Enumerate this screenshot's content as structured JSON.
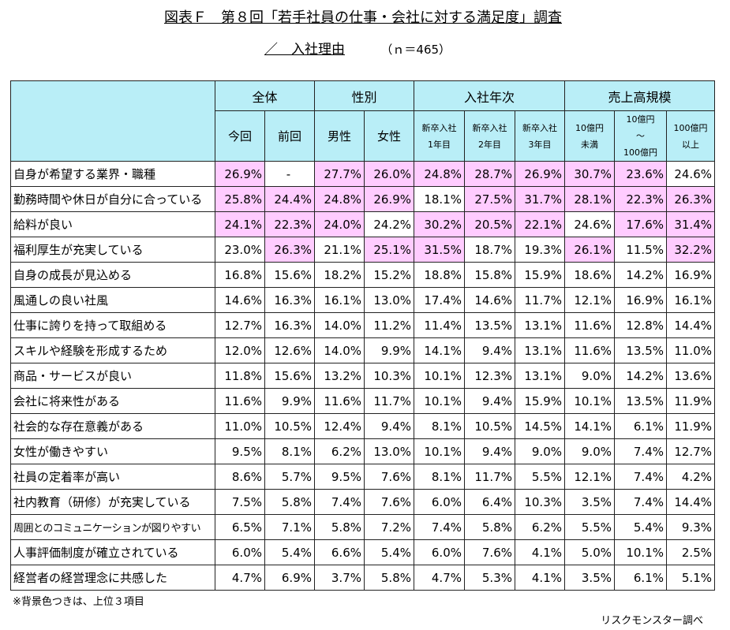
{
  "title": {
    "line1": "図表Ｆ　第８回「若手社員の仕事・会社に対する満足度」調査",
    "line2_slash": "／　入社理由",
    "line2_n": "（ｎ＝465）"
  },
  "table": {
    "groups": [
      "全体",
      "性別",
      "入社年次",
      "売上高規模"
    ],
    "subheaders": [
      "今回",
      "前回",
      "男性",
      "女性",
      "新卒入社\n1年目",
      "新卒入社\n2年目",
      "新卒入社\n3年目",
      "10億円\n未満",
      "10億円\n～\n100億円",
      "100億円\n以上"
    ],
    "rows": [
      {
        "label": "自身が希望する業界・職種",
        "values": [
          "26.9%",
          "-",
          "27.7%",
          "26.0%",
          "24.8%",
          "28.7%",
          "26.9%",
          "30.7%",
          "23.6%",
          "24.6%"
        ],
        "hl": [
          1,
          0,
          1,
          1,
          1,
          1,
          1,
          1,
          1,
          0
        ]
      },
      {
        "label": "勤務時間や休日が自分に合っている",
        "values": [
          "25.8%",
          "24.4%",
          "24.8%",
          "26.9%",
          "18.1%",
          "27.5%",
          "31.7%",
          "28.1%",
          "22.3%",
          "26.3%"
        ],
        "hl": [
          1,
          1,
          1,
          1,
          0,
          1,
          1,
          1,
          1,
          1
        ]
      },
      {
        "label": "給料が良い",
        "values": [
          "24.1%",
          "22.3%",
          "24.0%",
          "24.2%",
          "30.2%",
          "20.5%",
          "22.1%",
          "24.6%",
          "17.6%",
          "31.4%"
        ],
        "hl": [
          1,
          1,
          1,
          0,
          1,
          1,
          1,
          0,
          1,
          1
        ]
      },
      {
        "label": "福利厚生が充実している",
        "values": [
          "23.0%",
          "26.3%",
          "21.1%",
          "25.1%",
          "31.5%",
          "18.7%",
          "19.3%",
          "26.1%",
          "11.5%",
          "32.2%"
        ],
        "hl": [
          0,
          1,
          0,
          1,
          1,
          0,
          0,
          1,
          0,
          1
        ]
      },
      {
        "label": "自身の成長が見込める",
        "values": [
          "16.8%",
          "15.6%",
          "18.2%",
          "15.2%",
          "18.8%",
          "15.8%",
          "15.9%",
          "18.6%",
          "14.2%",
          "16.9%"
        ],
        "hl": [
          0,
          0,
          0,
          0,
          0,
          0,
          0,
          0,
          0,
          0
        ]
      },
      {
        "label": "風通しの良い社風",
        "values": [
          "14.6%",
          "16.3%",
          "16.1%",
          "13.0%",
          "17.4%",
          "14.6%",
          "11.7%",
          "12.1%",
          "16.9%",
          "16.1%"
        ],
        "hl": [
          0,
          0,
          0,
          0,
          0,
          0,
          0,
          0,
          0,
          0
        ]
      },
      {
        "label": "仕事に誇りを持って取組める",
        "values": [
          "12.7%",
          "16.3%",
          "14.0%",
          "11.2%",
          "11.4%",
          "13.5%",
          "13.1%",
          "11.6%",
          "12.8%",
          "14.4%"
        ],
        "hl": [
          0,
          0,
          0,
          0,
          0,
          0,
          0,
          0,
          0,
          0
        ]
      },
      {
        "label": "スキルや経験を形成するため",
        "values": [
          "12.0%",
          "12.6%",
          "14.0%",
          "9.9%",
          "14.1%",
          "9.4%",
          "13.1%",
          "11.6%",
          "13.5%",
          "11.0%"
        ],
        "hl": [
          0,
          0,
          0,
          0,
          0,
          0,
          0,
          0,
          0,
          0
        ]
      },
      {
        "label": "商品・サービスが良い",
        "values": [
          "11.8%",
          "15.6%",
          "13.2%",
          "10.3%",
          "10.1%",
          "12.3%",
          "13.1%",
          "9.0%",
          "14.2%",
          "13.6%"
        ],
        "hl": [
          0,
          0,
          0,
          0,
          0,
          0,
          0,
          0,
          0,
          0
        ]
      },
      {
        "label": "会社に将来性がある",
        "values": [
          "11.6%",
          "9.9%",
          "11.6%",
          "11.7%",
          "10.1%",
          "9.4%",
          "15.9%",
          "10.1%",
          "13.5%",
          "11.9%"
        ],
        "hl": [
          0,
          0,
          0,
          0,
          0,
          0,
          0,
          0,
          0,
          0
        ]
      },
      {
        "label": "社会的な存在意義がある",
        "values": [
          "11.0%",
          "10.5%",
          "12.4%",
          "9.4%",
          "8.1%",
          "10.5%",
          "14.5%",
          "14.1%",
          "6.1%",
          "11.9%"
        ],
        "hl": [
          0,
          0,
          0,
          0,
          0,
          0,
          0,
          0,
          0,
          0
        ]
      },
      {
        "label": "女性が働きやすい",
        "values": [
          "9.5%",
          "8.1%",
          "6.2%",
          "13.0%",
          "10.1%",
          "9.4%",
          "9.0%",
          "9.0%",
          "7.4%",
          "12.7%"
        ],
        "hl": [
          0,
          0,
          0,
          0,
          0,
          0,
          0,
          0,
          0,
          0
        ]
      },
      {
        "label": "社員の定着率が高い",
        "values": [
          "8.6%",
          "5.7%",
          "9.5%",
          "7.6%",
          "8.1%",
          "11.7%",
          "5.5%",
          "12.1%",
          "7.4%",
          "4.2%"
        ],
        "hl": [
          0,
          0,
          0,
          0,
          0,
          0,
          0,
          0,
          0,
          0
        ]
      },
      {
        "label": "社内教育（研修）が充実している",
        "values": [
          "7.5%",
          "5.8%",
          "7.4%",
          "7.6%",
          "6.0%",
          "6.4%",
          "10.3%",
          "3.5%",
          "7.4%",
          "14.4%"
        ],
        "hl": [
          0,
          0,
          0,
          0,
          0,
          0,
          0,
          0,
          0,
          0
        ]
      },
      {
        "label": "周囲とのコミュニケーションが図りやすい",
        "values": [
          "6.5%",
          "7.1%",
          "5.8%",
          "7.2%",
          "7.4%",
          "5.8%",
          "6.2%",
          "5.5%",
          "5.4%",
          "9.3%"
        ],
        "hl": [
          0,
          0,
          0,
          0,
          0,
          0,
          0,
          0,
          0,
          0
        ],
        "tight": true
      },
      {
        "label": "人事評価制度が確立されている",
        "values": [
          "6.0%",
          "5.4%",
          "6.6%",
          "5.4%",
          "6.0%",
          "7.6%",
          "4.1%",
          "5.0%",
          "10.1%",
          "2.5%"
        ],
        "hl": [
          0,
          0,
          0,
          0,
          0,
          0,
          0,
          0,
          0,
          0
        ]
      },
      {
        "label": "経営者の経営理念に共感した",
        "values": [
          "4.7%",
          "6.9%",
          "3.7%",
          "5.8%",
          "4.7%",
          "5.3%",
          "4.1%",
          "3.5%",
          "6.1%",
          "5.1%"
        ],
        "hl": [
          0,
          0,
          0,
          0,
          0,
          0,
          0,
          0,
          0,
          0
        ]
      }
    ]
  },
  "colors": {
    "header_bg": "#b9eef7",
    "highlight": "#ffccff"
  },
  "note": "※背景色つきは、上位３項目",
  "source": "リスクモンスター調べ"
}
